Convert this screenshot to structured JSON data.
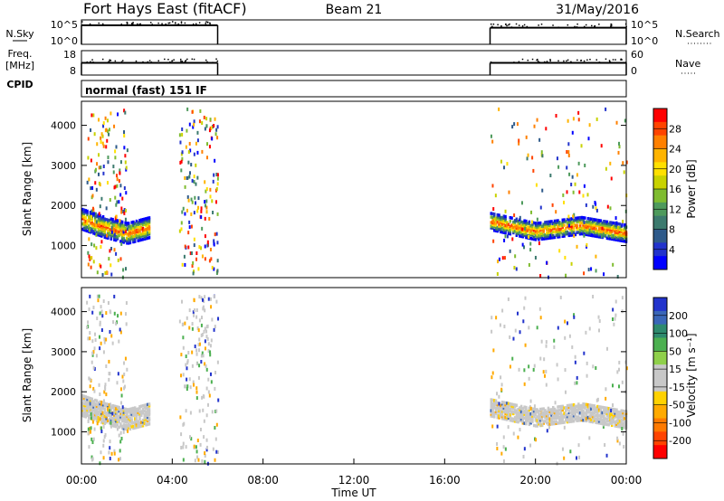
{
  "header": {
    "title": "Fort Hays East (fitACF)",
    "beam": "Beam 21",
    "date": "31/May/2016"
  },
  "side_labels": {
    "nsky": "N.Sky",
    "freq": "Freq.",
    "freq_unit": "[MHz]",
    "cpid": "CPID",
    "nsearch": "N.Search",
    "nave": "Nave"
  },
  "cpid_text": "normal (fast) 151 IF",
  "chart_data": [
    {
      "type": "line",
      "name": "noise-panel",
      "left_ticks": [
        "10^5",
        "10^0"
      ],
      "right_ticks": [
        "10^5",
        "10^0"
      ],
      "segments": [
        {
          "x_start": 0.0,
          "x_end": 6.0,
          "level": 0.78
        },
        {
          "x_start": 18.0,
          "x_end": 24.0,
          "level": 0.68
        }
      ]
    },
    {
      "type": "line",
      "name": "freq-nave-panel",
      "left_ticks": [
        "18",
        "8"
      ],
      "right_ticks": [
        "60",
        "0"
      ],
      "segments": [
        {
          "x_start": 0.0,
          "x_end": 6.0,
          "level": 0.5
        },
        {
          "x_start": 18.0,
          "x_end": 24.0,
          "level": 0.5
        }
      ]
    },
    {
      "type": "heatmap",
      "name": "power",
      "ylabel": "Slant Range [km]",
      "y_ticks": [
        1000,
        2000,
        3000,
        4000
      ],
      "ylim": [
        200,
        4600
      ],
      "xlim": [
        0,
        24
      ],
      "colorbar_label": "Power [dB]",
      "colorbar_ticks": [
        "28",
        "24",
        "20",
        "16",
        "12",
        "8",
        "4"
      ],
      "colorbar_colors": [
        "#ff0000",
        "#ff4400",
        "#ff8000",
        "#ffb400",
        "#ffe000",
        "#c8d200",
        "#7fbc30",
        "#4e9a5c",
        "#3c7a6e",
        "#2e5a8a",
        "#2233cc",
        "#0000ff"
      ],
      "bands": [
        {
          "x": [
            0.0,
            1.0,
            2.0,
            3.0
          ],
          "center_km": [
            1650,
            1450,
            1300,
            1450
          ],
          "width_km": 500
        },
        {
          "x": [
            18.0,
            20.0,
            22.0,
            24.0
          ],
          "center_km": [
            1600,
            1350,
            1500,
            1300
          ],
          "width_km": 420
        }
      ]
    },
    {
      "type": "heatmap",
      "name": "velocity",
      "ylabel": "Slant Range [km]",
      "y_ticks": [
        1000,
        2000,
        3000,
        4000
      ],
      "ylim": [
        200,
        4600
      ],
      "xlim": [
        0,
        24
      ],
      "colorbar_label": "Velocity [m s⁻¹]",
      "colorbar_ticks": [
        "200",
        "100",
        "50",
        "15",
        "-15",
        "-50",
        "-100",
        "-200"
      ],
      "colorbar_colors": [
        "#2233cc",
        "#3a66b8",
        "#2e8a6e",
        "#4cb050",
        "#8fd04a",
        "#c8c8c8",
        "#c8c8c8",
        "#ffd200",
        "#ffaa00",
        "#ff7a00",
        "#ff4400",
        "#ff0000"
      ]
    }
  ],
  "x_axis": {
    "label": "Time UT",
    "ticks": [
      "00:00",
      "04:00",
      "08:00",
      "12:00",
      "16:00",
      "20:00",
      "00:00"
    ]
  }
}
